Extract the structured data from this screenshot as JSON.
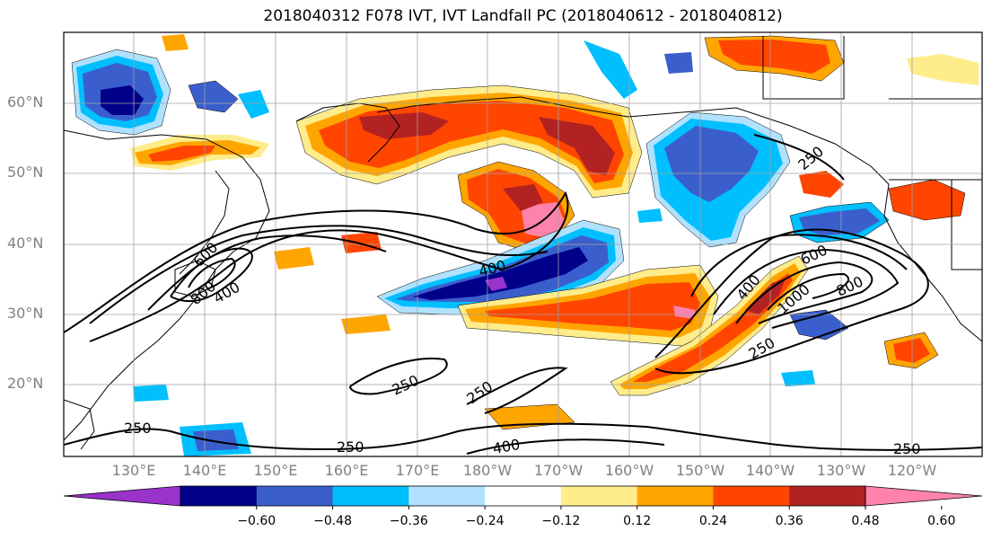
{
  "title": "2018040312 F078 IVT, IVT Landfall PC (2018040612 - 2018040812)",
  "lat_labels": [
    "60°N",
    "50°N",
    "40°N",
    "30°N",
    "20°N"
  ],
  "lon_labels": [
    "130°E",
    "140°E",
    "150°E",
    "160°E",
    "170°E",
    "180°W",
    "170°W",
    "160°W",
    "150°W",
    "140°W",
    "130°W",
    "120°W"
  ],
  "contour_labels": [
    "250",
    "400",
    "600",
    "800",
    "1000"
  ],
  "colorbar": {
    "tick_labels": [
      "−0.60",
      "−0.48",
      "−0.36",
      "−0.24",
      "−0.12",
      "0.12",
      "0.24",
      "0.36",
      "0.48",
      "0.60"
    ],
    "colors": [
      "#9933cc",
      "#00008b",
      "#3a5fcd",
      "#00bfff",
      "#b0e2ff",
      "#ffffff",
      "#ffec8b",
      "#ffa500",
      "#ff4500",
      "#b22222",
      "#ff82ab"
    ]
  },
  "colors": {
    "strong_positive": "#b22222",
    "positive": "#ff4500",
    "weak_positive": "#ffa500",
    "faint_positive": "#ffec8b",
    "extreme_positive": "#ff82ab",
    "strong_negative": "#00008b",
    "negative": "#3a5fcd",
    "weak_negative": "#00bfff",
    "faint_negative": "#b0e2ff",
    "extreme_negative": "#9933cc",
    "land_outline": "#000000",
    "grid": "#a0a0a0"
  }
}
